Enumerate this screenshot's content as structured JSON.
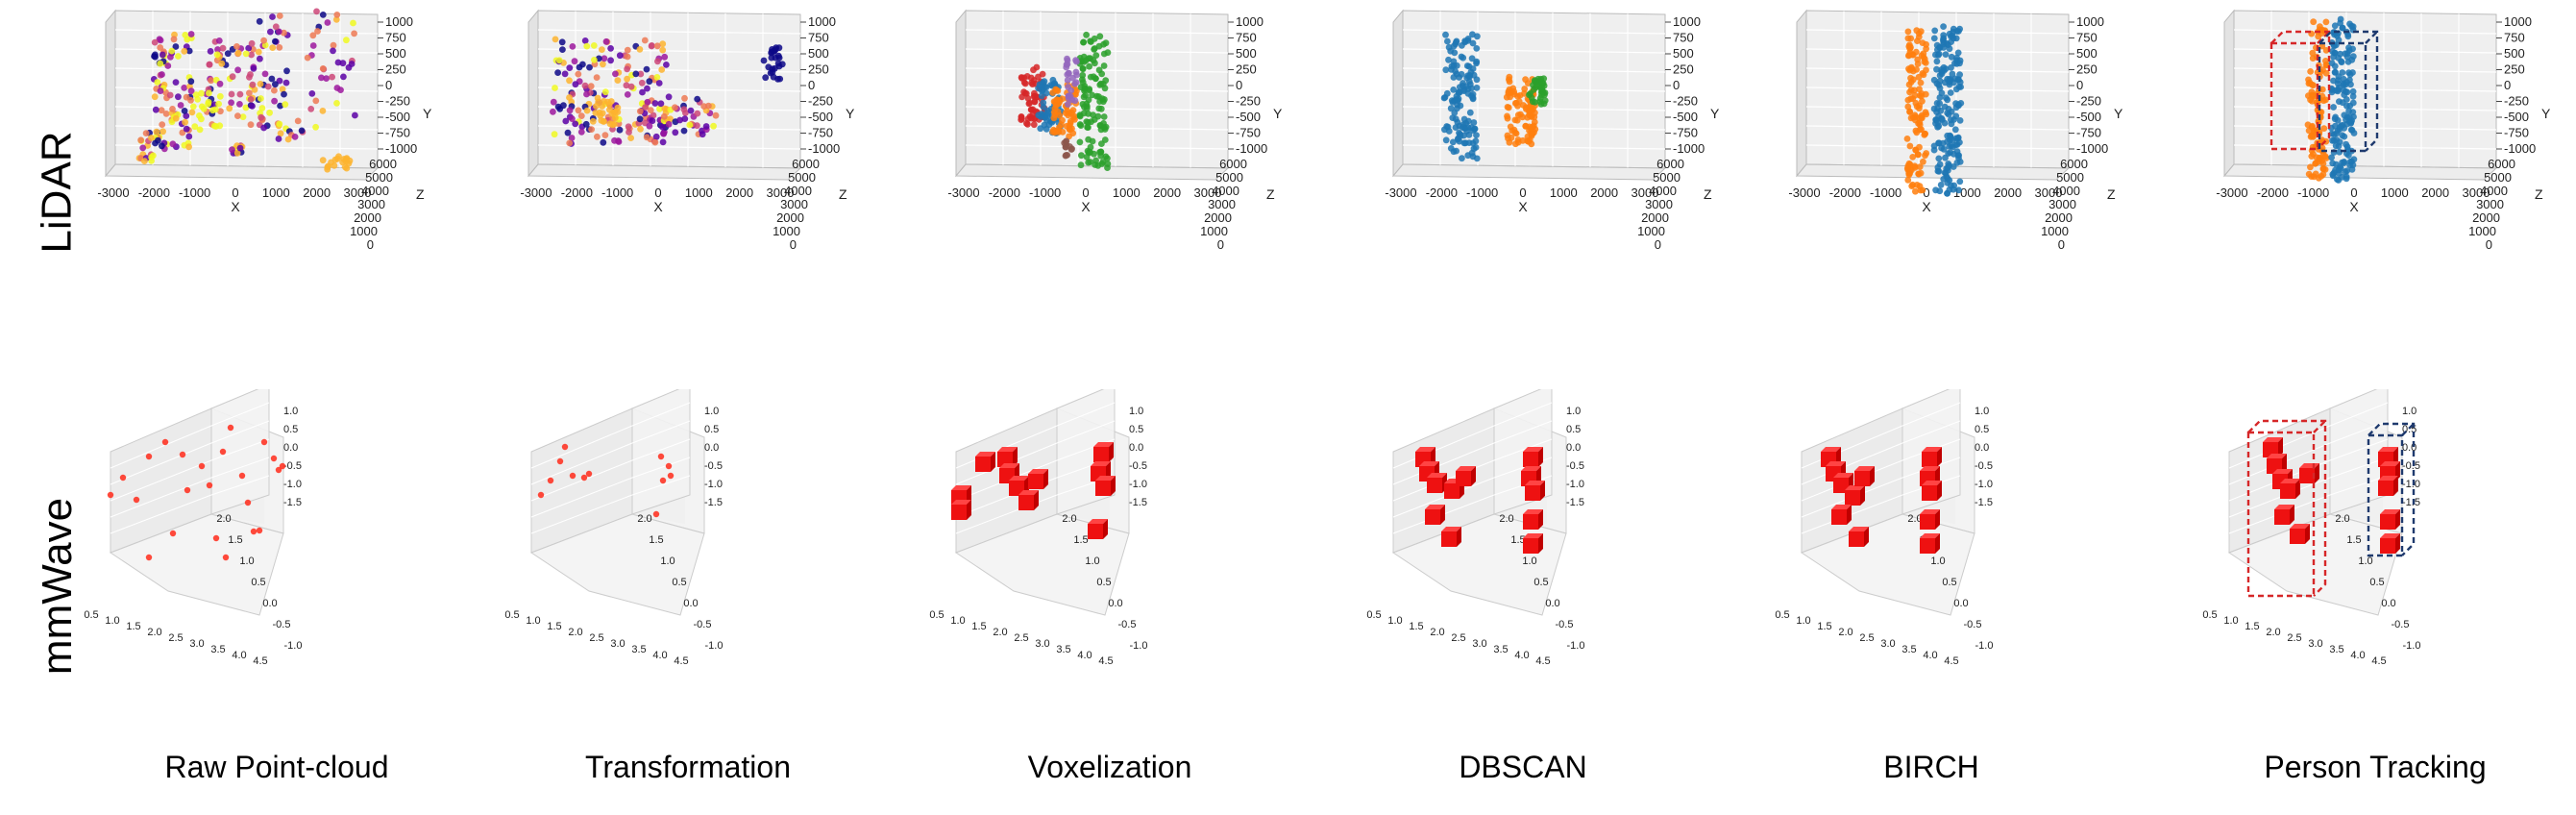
{
  "rows": [
    {
      "label": "LiDAR"
    },
    {
      "label": "mmWave"
    }
  ],
  "columns": [
    {
      "label": "Raw Point-cloud"
    },
    {
      "label": "Transformation"
    },
    {
      "label": "Voxelization"
    },
    {
      "label": "DBSCAN"
    },
    {
      "label": "BIRCH"
    },
    {
      "label": "Person Tracking"
    }
  ],
  "lidar_axes": {
    "x_ticks": [
      "-3000",
      "-2000",
      "-1000",
      "0",
      "1000",
      "2000",
      "3000"
    ],
    "x_label": "X",
    "y_ticks": [
      "1000",
      "750",
      "500",
      "250",
      "0",
      "-250",
      "-500",
      "-750",
      "-1000"
    ],
    "y_label": "Y",
    "z_ticks": [
      "6000",
      "5000",
      "4000",
      "3000",
      "2000",
      "1000",
      "0"
    ],
    "z_label": "Z"
  },
  "mmwave_axes": {
    "x_ticks": [
      "0.5",
      "1.0",
      "1.5",
      "2.0",
      "2.5",
      "3.0",
      "3.5",
      "4.0",
      "4.5"
    ],
    "y_ticks": [
      "-1.0",
      "-0.5",
      "0.0",
      "0.5",
      "1.0",
      "1.5",
      "2.0"
    ],
    "z_ticks": [
      "1.0",
      "0.5",
      "0.0",
      "-0.5",
      "-1.0",
      "-1.5"
    ]
  },
  "colors": {
    "plasma": [
      "#0d0887",
      "#5c01a6",
      "#9c179e",
      "#cc4778",
      "#ed7953",
      "#fdb42f",
      "#f0f921"
    ],
    "cluster_blue": "#1f77b4",
    "cluster_orange": "#ff7f0e",
    "cluster_green": "#2ca02c",
    "cluster_red": "#d62728",
    "cluster_purple": "#9467bd",
    "cluster_brown": "#8c564b",
    "mmwave_point": "#ff2a1a",
    "box_red": "#d62728",
    "box_navy": "#1f3a6e"
  }
}
